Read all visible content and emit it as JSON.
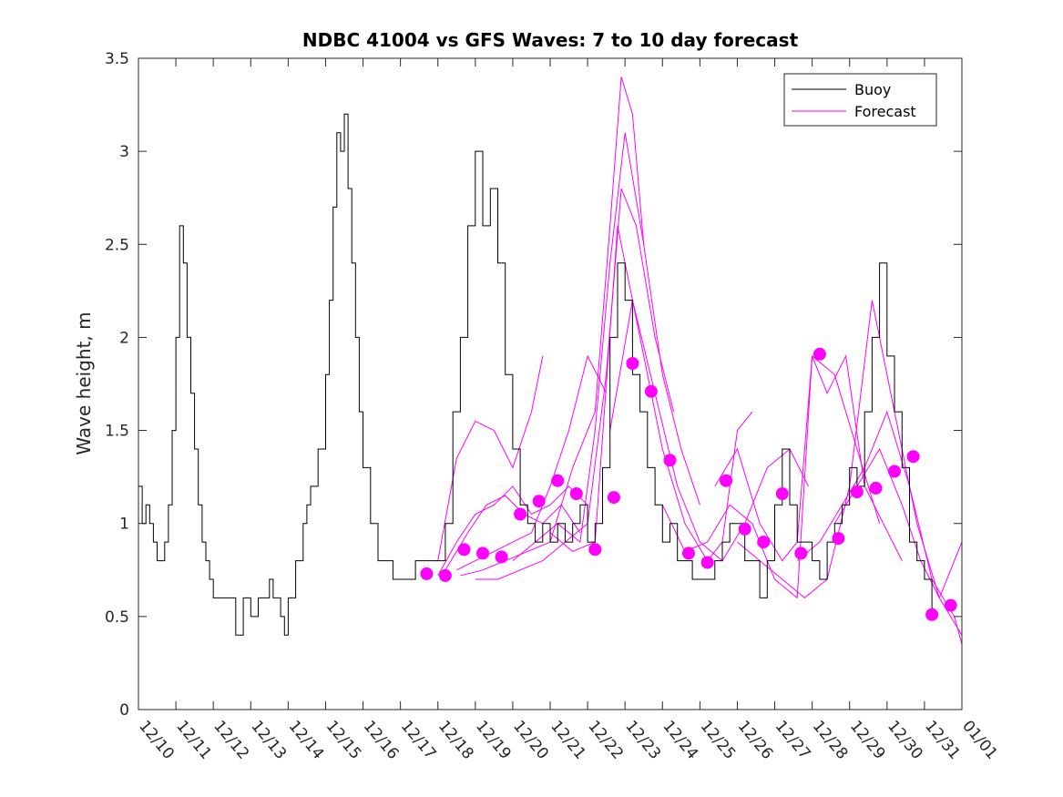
{
  "chart_data": {
    "type": "line",
    "title": "NDBC 41004 vs GFS Waves: 7 to 10 day forecast",
    "xlabel": "",
    "ylabel": "Wave height, m",
    "x_unit": "days since 12/10 00:00",
    "xlim": [
      0,
      22
    ],
    "ylim": [
      0,
      3.5
    ],
    "y_ticks": [
      0,
      0.5,
      1,
      1.5,
      2,
      2.5,
      3,
      3.5
    ],
    "y_tick_labels": [
      "0",
      "0.5",
      "1",
      "1.5",
      "2",
      "2.5",
      "3",
      "3.5"
    ],
    "x_ticks": [
      0,
      1,
      2,
      3,
      4,
      5,
      6,
      7,
      8,
      9,
      10,
      11,
      12,
      13,
      14,
      15,
      16,
      17,
      18,
      19,
      20,
      21,
      22
    ],
    "x_tick_labels": [
      "12/10",
      "12/11",
      "12/12",
      "12/13",
      "12/14",
      "12/15",
      "12/16",
      "12/17",
      "12/18",
      "12/19",
      "12/20",
      "12/21",
      "12/22",
      "12/23",
      "12/24",
      "12/25",
      "12/26",
      "12/27",
      "12/28",
      "12/29",
      "12/30",
      "12/31",
      "01/01"
    ],
    "legend": {
      "location": "top-right",
      "entries": [
        {
          "label": "Buoy",
          "color": "#000000"
        },
        {
          "label": "Forecast",
          "color": "#ff00ff"
        }
      ]
    },
    "colors": {
      "buoy": "#000000",
      "forecast": "#ff00ff"
    },
    "series": [
      {
        "name": "Buoy",
        "x": [
          0,
          0.1,
          0.2,
          0.3,
          0.4,
          0.5,
          0.6,
          0.7,
          0.8,
          0.9,
          1.0,
          1.1,
          1.2,
          1.3,
          1.4,
          1.5,
          1.6,
          1.7,
          1.8,
          1.9,
          2.0,
          2.2,
          2.4,
          2.6,
          2.8,
          3.0,
          3.2,
          3.3,
          3.4,
          3.5,
          3.6,
          3.7,
          3.8,
          3.9,
          4.0,
          4.2,
          4.4,
          4.5,
          4.6,
          4.8,
          5.0,
          5.1,
          5.2,
          5.3,
          5.4,
          5.5,
          5.6,
          5.7,
          5.8,
          5.9,
          6.0,
          6.2,
          6.4,
          6.6,
          6.8,
          7.0,
          7.2,
          7.4,
          7.6,
          7.8,
          8.0,
          8.2,
          8.4,
          8.6,
          8.8,
          9.0,
          9.2,
          9.4,
          9.6,
          9.8,
          10.0,
          10.2,
          10.4,
          10.6,
          10.8,
          11.0,
          11.2,
          11.4,
          11.6,
          11.8,
          12.0,
          12.2,
          12.4,
          12.6,
          12.8,
          13.0,
          13.2,
          13.4,
          13.6,
          13.8,
          14.0,
          14.2,
          14.4,
          14.6,
          14.8,
          15.0,
          15.2,
          15.4,
          15.6,
          15.8,
          16.0,
          16.2,
          16.4,
          16.6,
          16.8,
          17.0,
          17.2,
          17.4,
          17.6,
          17.8,
          18.0,
          18.2,
          18.4,
          18.6,
          18.8,
          19.0,
          19.2,
          19.4,
          19.6,
          19.8,
          20.0,
          20.2,
          20.4,
          20.6,
          20.8,
          21.0,
          21.2
        ],
        "y": [
          1.2,
          1.0,
          1.1,
          1.0,
          0.9,
          0.8,
          0.8,
          0.9,
          1.1,
          1.5,
          2.0,
          2.6,
          2.4,
          2.0,
          1.7,
          1.4,
          1.1,
          0.9,
          0.8,
          0.7,
          0.6,
          0.6,
          0.6,
          0.4,
          0.6,
          0.5,
          0.6,
          0.6,
          0.6,
          0.7,
          0.6,
          0.6,
          0.5,
          0.4,
          0.6,
          0.8,
          1.0,
          1.1,
          1.2,
          1.4,
          1.8,
          2.2,
          2.7,
          3.1,
          3.0,
          3.2,
          2.8,
          2.4,
          2.0,
          1.6,
          1.3,
          1.0,
          0.8,
          0.8,
          0.7,
          0.7,
          0.7,
          0.8,
          0.8,
          0.8,
          0.8,
          1.0,
          1.6,
          2.0,
          2.6,
          3.0,
          2.6,
          2.8,
          2.4,
          1.8,
          1.4,
          1.1,
          1.0,
          0.9,
          1.0,
          0.9,
          1.0,
          0.9,
          1.0,
          1.1,
          0.9,
          1.0,
          1.3,
          2.0,
          2.4,
          2.2,
          1.8,
          1.6,
          1.3,
          1.1,
          0.9,
          1.0,
          0.8,
          0.8,
          0.7,
          0.7,
          0.7,
          0.8,
          0.9,
          1.0,
          1.0,
          0.8,
          0.8,
          0.6,
          0.8,
          1.1,
          1.4,
          1.1,
          0.9,
          0.9,
          0.8,
          0.7,
          0.9,
          1.0,
          1.1,
          1.3,
          1.2,
          1.6,
          2.0,
          2.4,
          1.9,
          1.6,
          1.3,
          0.9,
          0.8,
          0.7,
          0.5
        ]
      },
      {
        "name": "Forecast",
        "runs": [
          {
            "x": [
              8.0,
              8.5,
              9.0,
              9.5,
              10.0,
              10.5,
              10.8
            ],
            "y": [
              0.8,
              1.35,
              1.55,
              1.5,
              1.3,
              1.6,
              1.9
            ]
          },
          {
            "x": [
              8.0,
              8.5,
              9.0,
              9.5,
              10.0,
              10.5,
              11.0,
              11.5,
              12.0
            ],
            "y": [
              0.72,
              0.9,
              1.05,
              1.1,
              1.2,
              1.05,
              1.1,
              1.2,
              1.1
            ]
          },
          {
            "x": [
              8.2,
              8.8,
              9.3,
              9.8,
              10.3,
              10.8,
              11.3,
              11.8
            ],
            "y": [
              0.75,
              0.95,
              1.1,
              1.15,
              1.05,
              1.0,
              1.1,
              0.95
            ]
          },
          {
            "x": [
              8.5,
              9.0,
              9.5,
              10.0,
              10.5,
              11.0,
              11.5,
              12.0,
              12.5
            ],
            "y": [
              0.75,
              0.8,
              0.85,
              0.9,
              0.95,
              1.2,
              1.5,
              1.9,
              1.7
            ]
          },
          {
            "x": [
              8.6,
              9.2,
              9.8,
              10.4,
              11.0,
              11.6,
              12.2,
              12.6,
              12.9,
              13.2,
              13.5
            ],
            "y": [
              0.72,
              0.75,
              0.8,
              0.85,
              0.9,
              1.3,
              1.6,
              2.6,
              3.4,
              3.2,
              2.5
            ]
          },
          {
            "x": [
              9.0,
              9.6,
              10.2,
              10.8,
              11.4,
              12.0,
              12.5,
              12.9,
              13.3,
              13.8,
              14.3
            ],
            "y": [
              0.7,
              0.7,
              0.75,
              0.8,
              0.9,
              1.0,
              1.8,
              2.8,
              2.6,
              2.0,
              1.6
            ]
          },
          {
            "x": [
              10.0,
              10.6,
              11.2,
              11.8,
              12.2,
              12.6,
              13.0,
              13.5,
              14.0,
              14.5,
              15.0
            ],
            "y": [
              0.8,
              0.9,
              1.0,
              0.9,
              1.5,
              2.4,
              3.1,
              2.5,
              1.8,
              1.4,
              1.1
            ]
          },
          {
            "x": [
              11.0,
              11.6,
              12.2,
              12.8,
              13.4,
              14.0,
              14.6,
              15.2,
              15.6,
              16.0,
              16.4
            ],
            "y": [
              0.95,
              0.85,
              0.9,
              2.6,
              2.0,
              1.4,
              1.0,
              0.8,
              0.9,
              1.5,
              1.6
            ]
          },
          {
            "x": [
              12.6,
              13.2,
              13.8,
              14.4,
              15.0,
              15.6,
              16.2,
              16.8,
              17.4,
              17.9
            ],
            "y": [
              1.5,
              2.2,
              1.7,
              1.2,
              0.9,
              0.8,
              1.0,
              1.3,
              1.4,
              1.2
            ]
          },
          {
            "x": [
              14.0,
              14.6,
              15.2,
              15.8,
              16.4,
              17.0,
              17.6,
              18.0,
              18.6,
              19.2,
              19.8
            ],
            "y": [
              1.1,
              0.85,
              0.9,
              1.1,
              1.0,
              0.7,
              0.6,
              1.9,
              1.8,
              1.4,
              1.0
            ]
          },
          {
            "x": [
              15.4,
              16.0,
              16.6,
              17.2,
              17.6,
              18.0,
              18.4,
              18.9,
              19.4,
              19.9,
              20.4
            ],
            "y": [
              1.2,
              1.4,
              1.0,
              0.8,
              0.9,
              1.9,
              1.7,
              1.9,
              1.2,
              1.0,
              0.8
            ]
          },
          {
            "x": [
              16.0,
              16.6,
              17.2,
              17.8,
              18.4,
              19.0,
              19.6,
              20.2,
              20.8,
              21.4,
              22.0
            ],
            "y": [
              0.9,
              0.8,
              0.7,
              0.6,
              0.7,
              1.2,
              2.2,
              1.6,
              1.0,
              0.6,
              0.4
            ]
          },
          {
            "x": [
              17.6,
              18.2,
              18.8,
              19.4,
              20.0,
              20.6,
              21.2,
              21.8,
              22.0
            ],
            "y": [
              0.8,
              0.9,
              1.1,
              1.3,
              1.6,
              1.2,
              0.7,
              0.5,
              0.35
            ]
          },
          {
            "x": [
              18.6,
              19.2,
              19.8,
              20.4,
              20.9,
              21.4,
              22.0
            ],
            "y": [
              1.0,
              1.2,
              1.4,
              1.1,
              0.8,
              0.6,
              0.9
            ]
          }
        ],
        "markers": {
          "x": [
            7.7,
            8.2,
            8.7,
            9.2,
            9.7,
            10.2,
            10.7,
            11.2,
            11.7,
            12.2,
            12.7,
            13.2,
            13.7,
            14.2,
            14.7,
            15.2,
            15.7,
            16.2,
            16.7,
            17.2,
            17.7,
            18.2,
            18.7,
            19.2,
            19.7,
            20.2,
            20.7,
            21.2,
            21.7
          ],
          "y": [
            0.73,
            0.72,
            0.86,
            0.84,
            0.82,
            1.05,
            1.12,
            1.23,
            1.16,
            0.86,
            1.14,
            1.86,
            1.71,
            1.34,
            0.84,
            0.79,
            1.23,
            0.97,
            0.9,
            1.16,
            0.84,
            1.91,
            0.92,
            1.17,
            1.19,
            1.28,
            1.36,
            0.51,
            0.56
          ]
        }
      }
    ]
  }
}
